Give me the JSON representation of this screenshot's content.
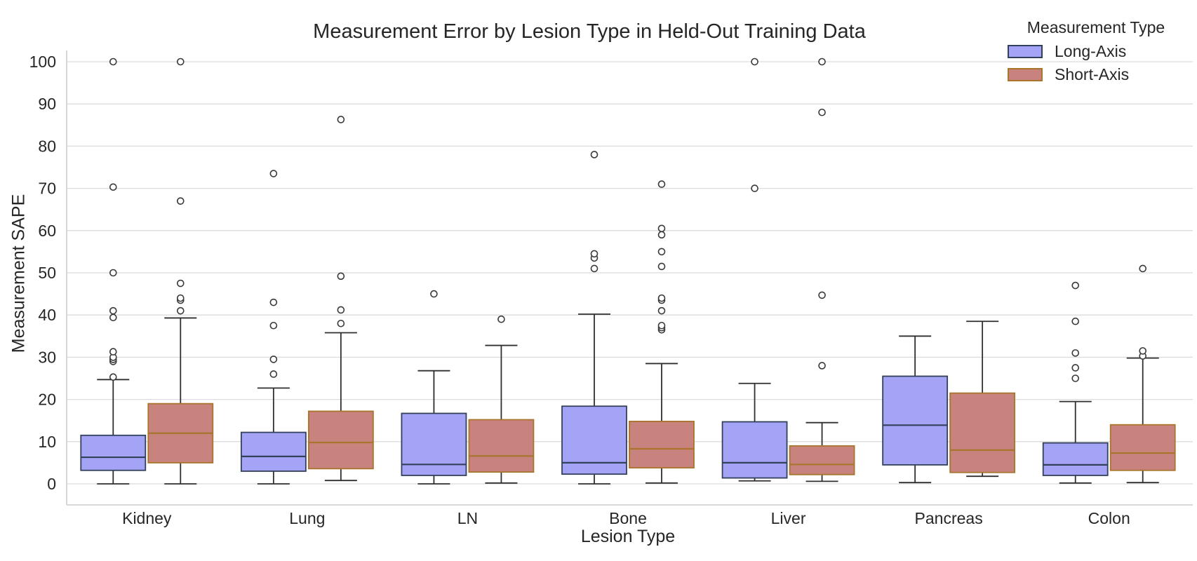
{
  "chart_data": {
    "type": "boxplot",
    "title": "Measurement Error by Lesion Type in Held-Out Training Data",
    "xlabel": "Lesion Type",
    "ylabel": "Measurement SAPE",
    "categories": [
      "Kidney",
      "Lung",
      "LN",
      "Bone",
      "Liver",
      "Pancreas",
      "Colon"
    ],
    "yticks": [
      0,
      10,
      20,
      30,
      40,
      50,
      60,
      70,
      80,
      90,
      100
    ],
    "ylim": [
      0,
      100
    ],
    "grid": "horizontal",
    "colors": {
      "gridline": "#dcdcdc",
      "spine": "#cccccc",
      "whisker": "#2f2f2f",
      "flier_edge": "#3a3a3a",
      "text": "#262626"
    },
    "legend": {
      "title": "Measurement Type",
      "position": "top-right"
    },
    "series": [
      {
        "name": "Long-Axis",
        "fill": "#a5a3f6",
        "edge": "#32415a",
        "boxes": [
          {
            "category": "Kidney",
            "whislo": 0,
            "q1": 3.2,
            "med": 6.3,
            "q3": 11.5,
            "whishi": 24.7,
            "outliers": [
              25.3,
              29,
              29.5,
              30,
              31.3,
              39.4,
              41,
              50,
              70.3,
              100
            ]
          },
          {
            "category": "Lung",
            "whislo": 0,
            "q1": 3.0,
            "med": 6.5,
            "q3": 12.2,
            "whishi": 22.7,
            "outliers": [
              26,
              29.5,
              37.5,
              43,
              73.5
            ]
          },
          {
            "category": "LN",
            "whislo": 0,
            "q1": 2.0,
            "med": 4.6,
            "q3": 16.7,
            "whishi": 26.8,
            "outliers": [
              45
            ]
          },
          {
            "category": "Bone",
            "whislo": 0,
            "q1": 2.3,
            "med": 5.0,
            "q3": 18.4,
            "whishi": 40.2,
            "outliers": [
              51,
              53.5,
              54.5,
              78
            ]
          },
          {
            "category": "Liver",
            "whislo": 0.7,
            "q1": 1.4,
            "med": 5.0,
            "q3": 14.7,
            "whishi": 23.8,
            "outliers": [
              70,
              100
            ]
          },
          {
            "category": "Pancreas",
            "whislo": 0.3,
            "q1": 4.5,
            "med": 13.9,
            "q3": 25.5,
            "whishi": 35.0,
            "outliers": []
          },
          {
            "category": "Colon",
            "whislo": 0.2,
            "q1": 2.0,
            "med": 4.5,
            "q3": 9.7,
            "whishi": 19.5,
            "outliers": [
              25,
              27.5,
              31,
              38.5,
              47
            ]
          }
        ]
      },
      {
        "name": "Short-Axis",
        "fill": "#c8837f",
        "edge": "#a9742c",
        "boxes": [
          {
            "category": "Kidney",
            "whislo": 0,
            "q1": 5.0,
            "med": 12.0,
            "q3": 19.0,
            "whishi": 39.3,
            "outliers": [
              41,
              43.5,
              44,
              47.5,
              67,
              100
            ]
          },
          {
            "category": "Lung",
            "whislo": 0.8,
            "q1": 3.6,
            "med": 9.8,
            "q3": 17.2,
            "whishi": 35.8,
            "outliers": [
              38,
              41.2,
              49.2,
              86.3
            ]
          },
          {
            "category": "LN",
            "whislo": 0.2,
            "q1": 2.8,
            "med": 6.6,
            "q3": 15.2,
            "whishi": 32.8,
            "outliers": [
              39
            ]
          },
          {
            "category": "Bone",
            "whislo": 0.2,
            "q1": 3.8,
            "med": 8.3,
            "q3": 14.8,
            "whishi": 28.5,
            "outliers": [
              36.5,
              37,
              37.5,
              41,
              43.5,
              44,
              51.5,
              55,
              59,
              60.5,
              71
            ]
          },
          {
            "category": "Liver",
            "whislo": 0.6,
            "q1": 2.2,
            "med": 4.6,
            "q3": 9.0,
            "whishi": 14.5,
            "outliers": [
              28,
              44.7,
              88,
              100
            ]
          },
          {
            "category": "Pancreas",
            "whislo": 1.8,
            "q1": 2.7,
            "med": 8.0,
            "q3": 21.5,
            "whishi": 38.5,
            "outliers": []
          },
          {
            "category": "Colon",
            "whislo": 0.3,
            "q1": 3.2,
            "med": 7.3,
            "q3": 14.0,
            "whishi": 29.8,
            "outliers": [
              30.3,
              31.5,
              51
            ]
          }
        ]
      }
    ]
  }
}
